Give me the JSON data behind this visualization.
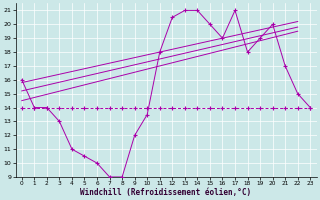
{
  "xlabel": "Windchill (Refroidissement éolien,°C)",
  "bg_color": "#cce8e8",
  "line_color": "#aa00aa",
  "grid_color": "#ffffff",
  "line1_x": [
    0,
    1,
    2,
    3,
    4,
    5,
    6,
    7,
    8,
    9,
    10,
    11,
    12,
    13,
    14,
    15,
    16,
    17,
    18,
    19,
    20,
    21,
    22,
    23
  ],
  "line1_y": [
    16,
    14,
    14,
    13,
    11,
    10.5,
    10,
    9,
    9,
    12,
    13.5,
    18,
    20.5,
    21,
    21,
    20,
    19,
    21,
    18,
    19,
    20,
    17,
    15,
    14
  ],
  "line2_x": [
    0,
    1,
    2,
    3,
    4,
    5,
    6,
    7,
    8,
    9,
    10,
    11,
    12,
    13,
    14,
    15,
    16,
    17,
    18,
    19,
    20,
    21,
    22,
    23
  ],
  "line2_y": [
    14,
    14,
    14,
    14,
    14,
    14,
    14,
    14,
    14,
    14,
    14,
    14,
    14,
    14,
    14,
    14,
    14,
    14,
    14,
    14,
    14,
    14,
    14,
    14
  ],
  "line3_x": [
    0,
    22
  ],
  "line3_y": [
    14.5,
    19.5
  ],
  "line4_x": [
    0,
    22
  ],
  "line4_y": [
    15.2,
    19.8
  ],
  "line5_x": [
    0,
    22
  ],
  "line5_y": [
    15.8,
    20.2
  ],
  "xlim": [
    -0.5,
    23.5
  ],
  "ylim": [
    9,
    21.5
  ],
  "yticks": [
    9,
    10,
    11,
    12,
    13,
    14,
    15,
    16,
    17,
    18,
    19,
    20,
    21
  ],
  "xticks": [
    0,
    1,
    2,
    3,
    4,
    5,
    6,
    7,
    8,
    9,
    10,
    11,
    12,
    13,
    14,
    15,
    16,
    17,
    18,
    19,
    20,
    21,
    22,
    23
  ]
}
